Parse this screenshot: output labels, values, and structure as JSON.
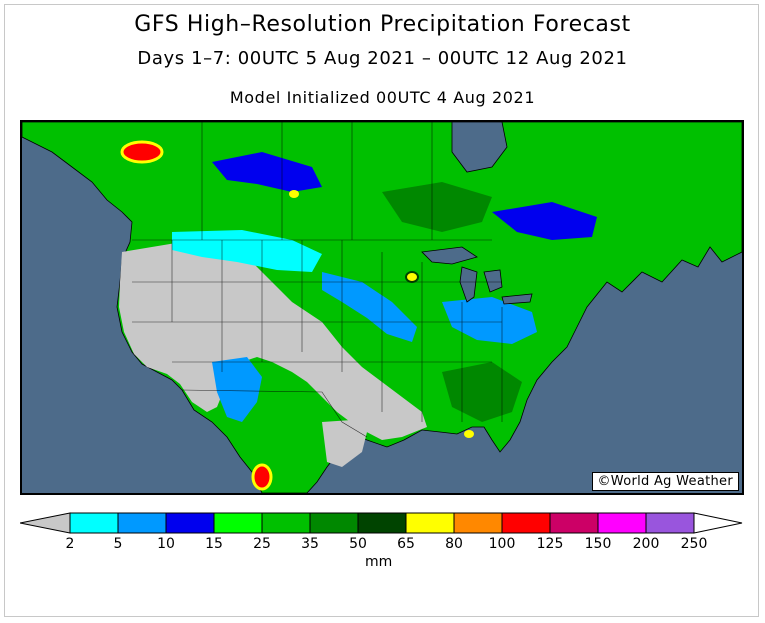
{
  "title": "GFS High–Resolution Precipitation Forecast",
  "subtitle": "Days 1–7: 00UTC 5 Aug 2021 – 00UTC 12 Aug 2021",
  "initialized": "Model Initialized 00UTC 4 Aug 2021",
  "credit": "©World Ag Weather",
  "legend": {
    "unit": "mm",
    "below_min_color": "#c8c8c8",
    "above_max_color": "#ffffff",
    "bins": [
      {
        "from": 2,
        "to": 5,
        "color": "#00ffff"
      },
      {
        "from": 5,
        "to": 10,
        "color": "#0099ff"
      },
      {
        "from": 10,
        "to": 15,
        "color": "#0000ee"
      },
      {
        "from": 15,
        "to": 25,
        "color": "#00ff00"
      },
      {
        "from": 25,
        "to": 35,
        "color": "#00c000"
      },
      {
        "from": 35,
        "to": 50,
        "color": "#008800"
      },
      {
        "from": 50,
        "to": 65,
        "color": "#004400"
      },
      {
        "from": 65,
        "to": 80,
        "color": "#ffff00"
      },
      {
        "from": 80,
        "to": 100,
        "color": "#ff8800"
      },
      {
        "from": 100,
        "to": 125,
        "color": "#ff0000"
      },
      {
        "from": 125,
        "to": 150,
        "color": "#cc0066"
      },
      {
        "from": 150,
        "to": 200,
        "color": "#ff00ff"
      },
      {
        "from": 200,
        "to": 250,
        "color": "#9955dd"
      }
    ],
    "ticks": [
      "2",
      "5",
      "10",
      "15",
      "25",
      "35",
      "50",
      "65",
      "80",
      "100",
      "125",
      "150",
      "200",
      "250"
    ]
  },
  "map": {
    "ocean_color": "#4d6b8a",
    "dry_land_color": "#c8c8c8"
  }
}
